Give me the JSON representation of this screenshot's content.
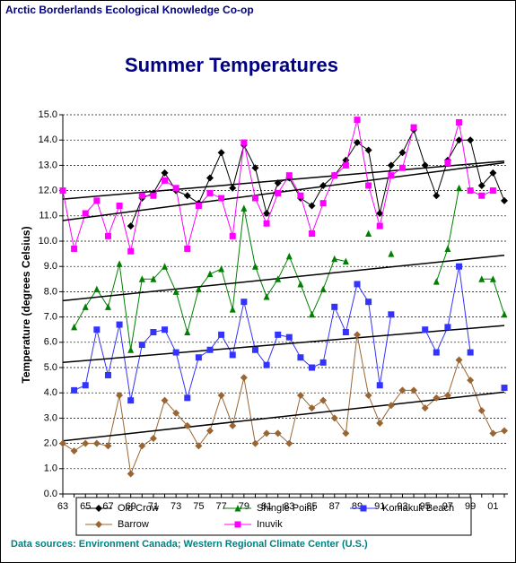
{
  "chart_data": {
    "type": "line",
    "header": "Arctic Borderlands Ecological Knowledge Co-op",
    "title": "Summer Temperatures",
    "y_label": "Temperature (degrees Celsius)",
    "source": "Data sources: Environment Canada; Western Regional Climate Center (U.S.)",
    "categories": [
      "63",
      null,
      "65",
      null,
      "67",
      null,
      "69",
      null,
      "71",
      null,
      "73",
      null,
      "75",
      null,
      "77",
      null,
      "79",
      null,
      "81",
      null,
      "83",
      null,
      "85",
      null,
      "87",
      null,
      "89",
      null,
      "91",
      null,
      "93",
      null,
      "95",
      null,
      "97",
      null,
      "99",
      null,
      "01",
      null
    ],
    "ylim": [
      0,
      15
    ],
    "yticks": [
      {
        "value": 0,
        "label": "0.0"
      },
      {
        "value": 1,
        "label": "1.0"
      },
      {
        "value": 2,
        "label": "2.0"
      },
      {
        "value": 3,
        "label": "3.0"
      },
      {
        "value": 4,
        "label": "4.0"
      },
      {
        "value": 5,
        "label": "5.0"
      },
      {
        "value": 6,
        "label": "6.0"
      },
      {
        "value": 7,
        "label": "7.0"
      },
      {
        "value": 8,
        "label": "8.0"
      },
      {
        "value": 9,
        "label": "9.0"
      },
      {
        "value": 10,
        "label": "10.0"
      },
      {
        "value": 11,
        "label": "11.0"
      },
      {
        "value": 12,
        "label": "12.0"
      },
      {
        "value": 13,
        "label": "13.0"
      },
      {
        "value": 14,
        "label": "14.0"
      },
      {
        "value": 15,
        "label": "15.0"
      }
    ],
    "grid": true,
    "trendlines": true,
    "series": [
      {
        "name": "Old Crow",
        "color": "#000000",
        "marker": "diamond",
        "values": [
          null,
          null,
          null,
          null,
          null,
          null,
          10.6,
          11.7,
          11.9,
          12.7,
          12.0,
          11.8,
          11.5,
          12.5,
          13.5,
          12.1,
          13.8,
          12.9,
          11.1,
          12.3,
          12.5,
          11.7,
          11.4,
          12.2,
          12.6,
          13.2,
          13.9,
          13.6,
          11.1,
          13.0,
          13.5,
          14.4,
          13.0,
          11.8,
          13.2,
          14.0,
          14.0,
          12.2,
          12.7,
          11.6
        ]
      },
      {
        "name": "Shingle Point",
        "color": "#008000",
        "marker": "triangle",
        "values": [
          null,
          6.6,
          7.4,
          8.1,
          7.4,
          9.1,
          5.7,
          8.5,
          8.5,
          9.0,
          8.0,
          6.4,
          8.1,
          8.7,
          8.9,
          7.3,
          11.3,
          9.0,
          7.8,
          8.5,
          9.4,
          8.3,
          7.1,
          8.1,
          9.3,
          9.2,
          null,
          10.3,
          null,
          9.5,
          null,
          null,
          null,
          8.4,
          9.7,
          12.1,
          null,
          8.5,
          8.5,
          7.1
        ]
      },
      {
        "name": "Komakuk Beach",
        "color": "#3333ff",
        "marker": "square",
        "values": [
          null,
          4.1,
          4.3,
          6.5,
          4.7,
          6.7,
          3.7,
          5.9,
          6.4,
          6.5,
          5.6,
          3.8,
          5.4,
          5.7,
          6.3,
          5.5,
          7.6,
          5.7,
          5.1,
          6.3,
          6.2,
          5.4,
          5.0,
          5.2,
          7.4,
          6.4,
          8.3,
          7.6,
          4.3,
          7.1,
          null,
          null,
          6.5,
          5.6,
          6.6,
          9.0,
          5.6,
          null,
          null,
          4.2
        ]
      },
      {
        "name": "Barrow",
        "color": "#996633",
        "marker": "diamond",
        "values": [
          2.0,
          1.7,
          2.0,
          2.0,
          1.9,
          3.9,
          0.8,
          1.9,
          2.2,
          3.7,
          3.2,
          2.7,
          1.9,
          2.5,
          3.9,
          2.7,
          4.6,
          2.0,
          2.4,
          2.4,
          2.0,
          3.9,
          3.4,
          3.7,
          3.0,
          2.4,
          6.3,
          3.9,
          2.8,
          3.5,
          4.1,
          4.1,
          3.4,
          3.8,
          3.9,
          5.3,
          4.5,
          3.3,
          2.4,
          2.5
        ]
      },
      {
        "name": "Inuvik",
        "color": "#ff00ff",
        "marker": "square",
        "values": [
          12.0,
          9.7,
          11.1,
          11.6,
          10.2,
          11.4,
          9.6,
          11.8,
          11.8,
          12.4,
          12.1,
          9.7,
          11.4,
          11.9,
          11.7,
          10.2,
          13.9,
          11.7,
          10.7,
          11.9,
          12.6,
          11.8,
          10.3,
          11.5,
          12.6,
          13.0,
          14.8,
          12.2,
          10.6,
          12.6,
          12.9,
          14.5,
          null,
          null,
          13.1,
          14.7,
          12.0,
          11.8,
          12.0,
          null
        ]
      }
    ]
  }
}
